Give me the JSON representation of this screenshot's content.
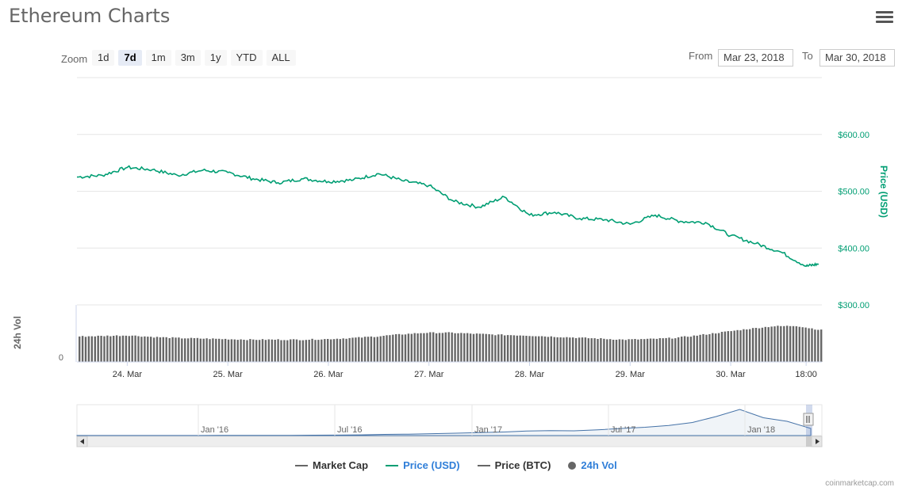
{
  "header": {
    "title": "Ethereum Charts"
  },
  "toolbar": {
    "zoom_label": "Zoom",
    "zoom_options": [
      "1d",
      "7d",
      "1m",
      "3m",
      "1y",
      "YTD",
      "ALL"
    ],
    "active_zoom": "7d",
    "from_label": "From",
    "from_value": "Mar 23, 2018",
    "to_label": "To",
    "to_value": "Mar 30, 2018"
  },
  "colors": {
    "price": "#009e73",
    "volume": "#666666",
    "navigator": "#4572a7",
    "accent": "#2f7ed8"
  },
  "chart_data": {
    "type": "line",
    "x_ticks": [
      "24. Mar",
      "25. Mar",
      "26. Mar",
      "27. Mar",
      "28. Mar",
      "29. Mar",
      "30. Mar",
      "18:00"
    ],
    "price_axis": {
      "label": "Price (USD)",
      "ticks": [
        "$600.00",
        "$500.00",
        "$400.00",
        "$300.00"
      ],
      "ylim": [
        300,
        700
      ]
    },
    "volume_axis": {
      "label": "24h Vol",
      "ticks": [
        "0"
      ]
    },
    "series": [
      {
        "name": "Price (USD)",
        "x": [
          "Mar 23 12:00",
          "Mar 23 18:00",
          "Mar 24 00:00",
          "Mar 24 06:00",
          "Mar 24 12:00",
          "Mar 24 18:00",
          "Mar 25 00:00",
          "Mar 25 06:00",
          "Mar 25 12:00",
          "Mar 25 18:00",
          "Mar 26 00:00",
          "Mar 26 06:00",
          "Mar 26 12:00",
          "Mar 26 18:00",
          "Mar 27 00:00",
          "Mar 27 06:00",
          "Mar 27 12:00",
          "Mar 27 18:00",
          "Mar 28 00:00",
          "Mar 28 06:00",
          "Mar 28 12:00",
          "Mar 28 18:00",
          "Mar 29 00:00",
          "Mar 29 06:00",
          "Mar 29 12:00",
          "Mar 29 18:00",
          "Mar 30 00:00",
          "Mar 30 06:00",
          "Mar 30 12:00",
          "Mar 30 18:00",
          "Mar 30 21:00"
        ],
        "values": [
          525,
          528,
          542,
          538,
          528,
          537,
          533,
          522,
          515,
          522,
          517,
          520,
          531,
          518,
          510,
          482,
          472,
          490,
          458,
          463,
          452,
          450,
          442,
          458,
          447,
          445,
          422,
          408,
          393,
          368,
          372
        ]
      },
      {
        "name": "24h Vol",
        "x_range": [
          "Mar 23 12:00",
          "Mar 30 21:00"
        ],
        "relative_values": [
          0.48,
          0.49,
          0.5,
          0.47,
          0.45,
          0.44,
          0.43,
          0.42,
          0.42,
          0.42,
          0.43,
          0.45,
          0.48,
          0.52,
          0.55,
          0.55,
          0.53,
          0.51,
          0.5,
          0.48,
          0.46,
          0.44,
          0.42,
          0.43,
          0.45,
          0.5,
          0.56,
          0.62,
          0.67,
          0.68,
          0.6
        ]
      }
    ],
    "navigator": {
      "ticks": [
        "Jan '16",
        "Jul '16",
        "Jan '17",
        "Jul '17",
        "Jan '18"
      ],
      "values": [
        1,
        1,
        1,
        1,
        1,
        1,
        2,
        2,
        2,
        2,
        3,
        4,
        6,
        10,
        12,
        16,
        20,
        25,
        30,
        38,
        42,
        40,
        48,
        60,
        70,
        85,
        110,
        160,
        220,
        150,
        120,
        60
      ]
    }
  },
  "legend": {
    "items": [
      {
        "label": "Market Cap",
        "color": "#666666",
        "shape": "line"
      },
      {
        "label": "Price (USD)",
        "color": "#009e73",
        "shape": "line"
      },
      {
        "label": "Price (BTC)",
        "color": "#666666",
        "shape": "line"
      },
      {
        "label": "24h Vol",
        "color": "#666666",
        "shape": "dot"
      }
    ]
  },
  "credit": "coinmarketcap.com"
}
